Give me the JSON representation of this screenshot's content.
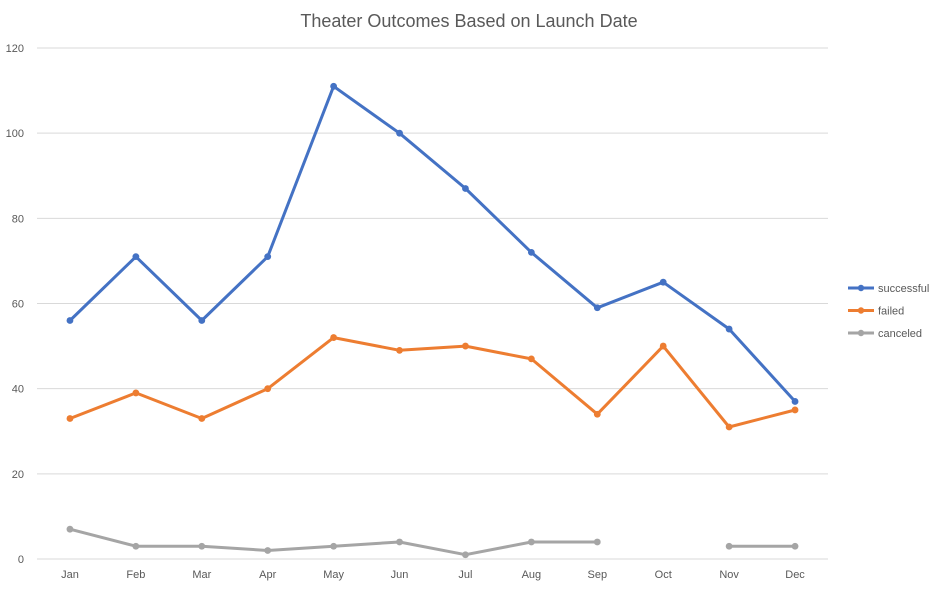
{
  "chart_data": {
    "type": "line",
    "title": "Theater Outcomes Based on Launch Date",
    "xlabel": "",
    "ylabel": "",
    "categories": [
      "Jan",
      "Feb",
      "Mar",
      "Apr",
      "May",
      "Jun",
      "Jul",
      "Aug",
      "Sep",
      "Oct",
      "Nov",
      "Dec"
    ],
    "ylim": [
      0,
      120
    ],
    "yticks": [
      0,
      20,
      40,
      60,
      80,
      100,
      120
    ],
    "grid": true,
    "legend_position": "right",
    "series": [
      {
        "name": "successful",
        "color": "#4472C4",
        "values": [
          56,
          71,
          56,
          71,
          111,
          100,
          87,
          72,
          59,
          65,
          54,
          37
        ]
      },
      {
        "name": "failed",
        "color": "#ED7D31",
        "values": [
          33,
          39,
          33,
          40,
          52,
          49,
          50,
          47,
          34,
          50,
          31,
          35
        ]
      },
      {
        "name": "canceled",
        "color": "#A5A5A5",
        "values": [
          7,
          3,
          3,
          2,
          3,
          4,
          1,
          4,
          4,
          null,
          3,
          3
        ]
      }
    ]
  }
}
